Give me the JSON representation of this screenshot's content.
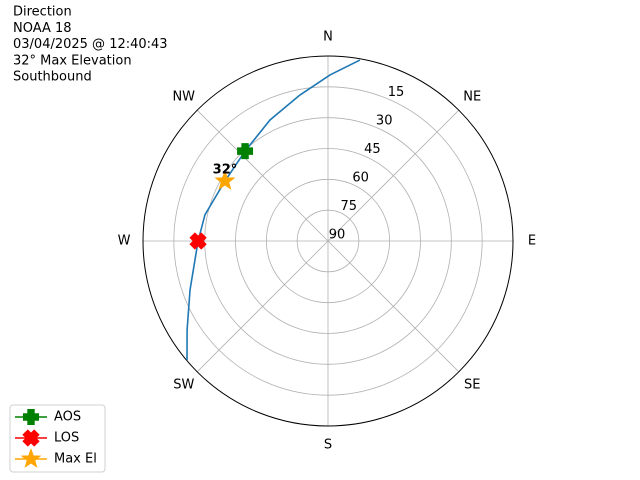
{
  "chart_data": {
    "type": "polar",
    "title_lines": [
      "Direction",
      "NOAA 18",
      "03/04/2025 @ 12:40:43",
      "32° Max Elevation",
      "Southbound"
    ],
    "annotation": "32°",
    "theta_zero": "N",
    "theta_direction": "clockwise",
    "thetaticks": [
      {
        "value": 0,
        "label": "N"
      },
      {
        "value": 45,
        "label": "NE"
      },
      {
        "value": 90,
        "label": "E"
      },
      {
        "value": 135,
        "label": "SE"
      },
      {
        "value": 180,
        "label": "S"
      },
      {
        "value": 225,
        "label": "SW"
      },
      {
        "value": 270,
        "label": "W"
      },
      {
        "value": 315,
        "label": "NW"
      }
    ],
    "rlim": [
      90,
      0
    ],
    "rticks": [
      15,
      30,
      45,
      60,
      75,
      90
    ],
    "grid": true,
    "legend": "lower left",
    "series": [
      {
        "color": "#1f77b4",
        "x": [
          10,
          0.7,
          349.1,
          334.4,
          317.3,
          300.2,
          282,
          270,
          250.5,
          237.7,
          229.8
        ],
        "values": [
          0.6,
          9.2,
          17.7,
          24.7,
          30.5,
          32,
          28.8,
          26.8,
          18.8,
          8.9,
          0.2
        ]
      },
      {
        "name": "AOS",
        "color": "#008000",
        "marker": "plus",
        "x": [
          317.3
        ],
        "values": [
          30.5
        ]
      },
      {
        "name": "LOS",
        "color": "#ff0000",
        "marker": "x",
        "x": [
          270
        ],
        "values": [
          26.8
        ]
      },
      {
        "name": "Max El",
        "color": "#ffa500",
        "marker": "star",
        "x": [
          300.2
        ],
        "values": [
          32
        ]
      }
    ]
  }
}
